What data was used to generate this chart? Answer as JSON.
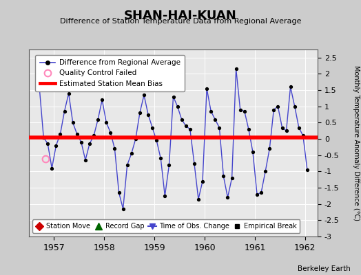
{
  "title": "SHAN-HAI-KUAN",
  "subtitle": "Difference of Station Temperature Data from Regional Average",
  "ylabel": "Monthly Temperature Anomaly Difference (°C)",
  "credit": "Berkeley Earth",
  "xlim": [
    1956.5,
    1962.25
  ],
  "ylim": [
    -3,
    2.75
  ],
  "yticks": [
    -3,
    -2.5,
    -2,
    -1.5,
    -1,
    -0.5,
    0,
    0.5,
    1,
    1.5,
    2,
    2.5
  ],
  "xticks": [
    1957,
    1958,
    1959,
    1960,
    1961,
    1962
  ],
  "bias_y": 0.05,
  "bias_color": "#ff0000",
  "line_color": "#4444cc",
  "marker_color": "#000000",
  "qc_x": [
    1956.83
  ],
  "qc_y": [
    -0.62
  ],
  "plot_bg": "#e8e8e8",
  "fig_bg": "#cccccc",
  "data_x": [
    1956.708,
    1956.792,
    1956.875,
    1956.958,
    1957.042,
    1957.125,
    1957.208,
    1957.292,
    1957.375,
    1957.458,
    1957.542,
    1957.625,
    1957.708,
    1957.792,
    1957.875,
    1957.958,
    1958.042,
    1958.125,
    1958.208,
    1958.292,
    1958.375,
    1958.458,
    1958.542,
    1958.625,
    1958.708,
    1958.792,
    1958.875,
    1958.958,
    1959.042,
    1959.125,
    1959.208,
    1959.292,
    1959.375,
    1959.458,
    1959.542,
    1959.625,
    1959.708,
    1959.792,
    1959.875,
    1959.958,
    1960.042,
    1960.125,
    1960.208,
    1960.292,
    1960.375,
    1960.458,
    1960.542,
    1960.625,
    1960.708,
    1960.792,
    1960.875,
    1960.958,
    1961.042,
    1961.125,
    1961.208,
    1961.292,
    1961.375,
    1961.458,
    1961.542,
    1961.625,
    1961.708,
    1961.792,
    1961.875,
    1961.958,
    1962.042
  ],
  "data_y": [
    1.6,
    0.05,
    -0.15,
    -0.9,
    -0.2,
    0.15,
    0.85,
    1.4,
    0.5,
    0.15,
    -0.1,
    -0.65,
    -0.15,
    0.1,
    0.6,
    1.2,
    0.5,
    0.2,
    -0.3,
    -1.65,
    -2.15,
    -0.8,
    -0.45,
    0.0,
    0.8,
    1.35,
    0.75,
    0.35,
    -0.05,
    -0.6,
    -1.75,
    -0.8,
    1.3,
    1.0,
    0.6,
    0.4,
    0.3,
    -0.75,
    -1.85,
    -1.3,
    1.55,
    0.85,
    0.6,
    0.35,
    -1.15,
    -1.8,
    -1.2,
    2.15,
    0.9,
    0.85,
    0.3,
    -0.4,
    -1.7,
    -1.65,
    -1.0,
    -0.3,
    0.9,
    1.0,
    0.35,
    0.25,
    1.6,
    1.0,
    0.35,
    0.1,
    -0.95
  ]
}
